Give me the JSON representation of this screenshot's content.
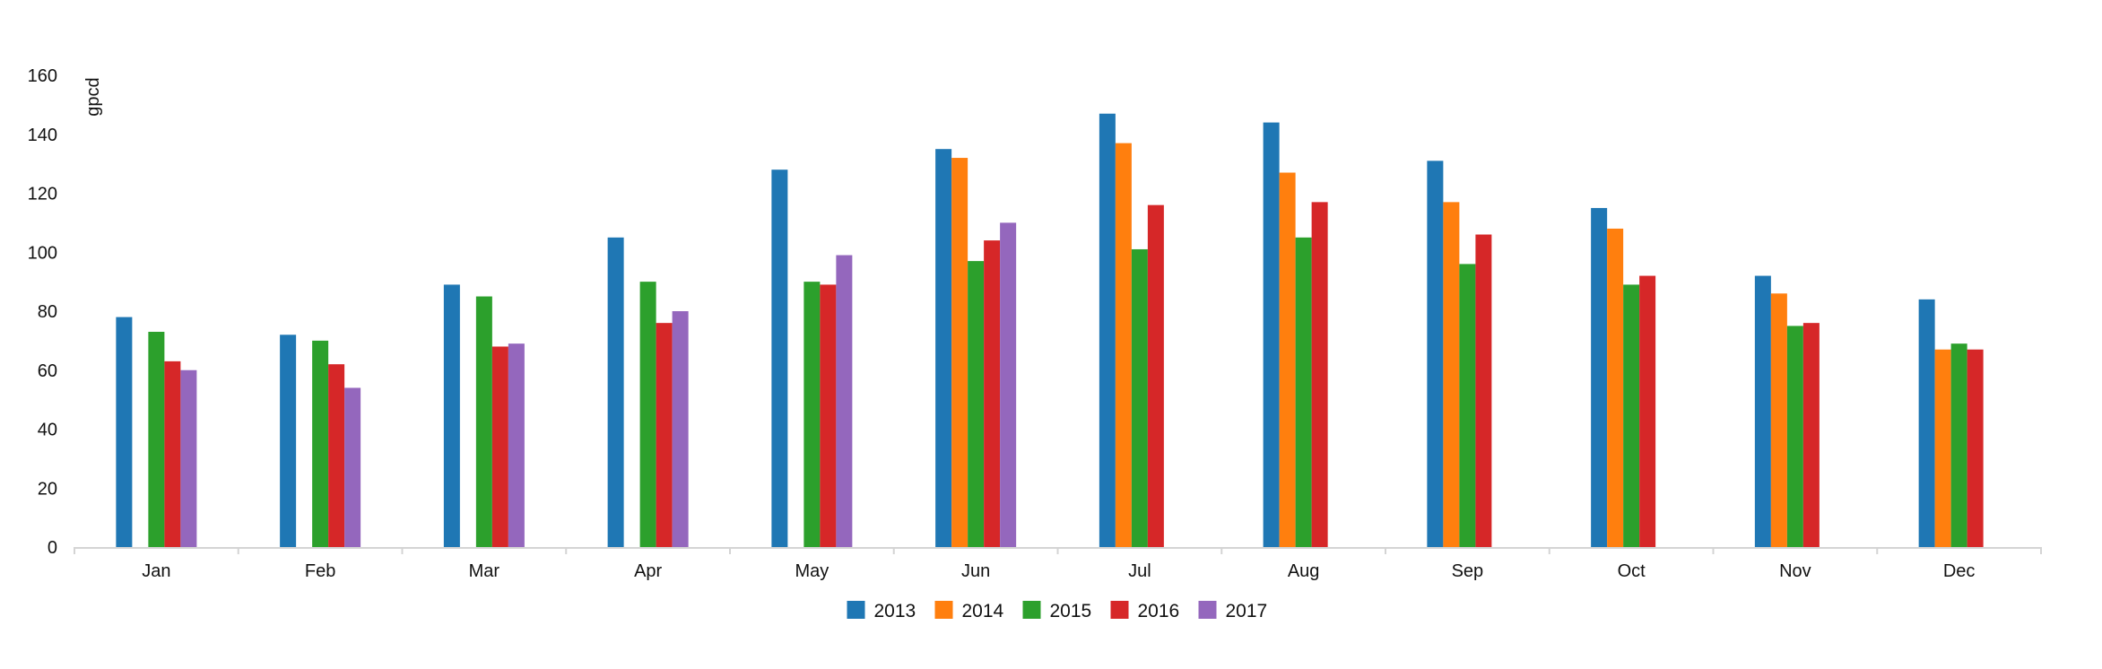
{
  "chart_data": {
    "type": "bar",
    "title": "",
    "xlabel": "",
    "ylabel": "gpcd",
    "ylim": [
      0,
      160
    ],
    "yticks": [
      0,
      20,
      40,
      60,
      80,
      100,
      120,
      140,
      160
    ],
    "grid": false,
    "legend_position": "bottom-center",
    "categories": [
      "Jan",
      "Feb",
      "Mar",
      "Apr",
      "May",
      "Jun",
      "Jul",
      "Aug",
      "Sep",
      "Oct",
      "Nov",
      "Dec"
    ],
    "series": [
      {
        "name": "2013",
        "color": "#1f77b4",
        "values": [
          78,
          72,
          89,
          105,
          128,
          135,
          147,
          144,
          131,
          115,
          92,
          84
        ]
      },
      {
        "name": "2014",
        "color": "#ff7f0e",
        "values": [
          null,
          null,
          null,
          null,
          null,
          132,
          137,
          127,
          117,
          108,
          86,
          67
        ]
      },
      {
        "name": "2015",
        "color": "#2ca02c",
        "values": [
          73,
          70,
          85,
          90,
          90,
          97,
          101,
          105,
          96,
          89,
          75,
          69
        ]
      },
      {
        "name": "2016",
        "color": "#d62728",
        "values": [
          63,
          62,
          68,
          76,
          89,
          104,
          116,
          117,
          106,
          92,
          76,
          67
        ]
      },
      {
        "name": "2017",
        "color": "#9467bd",
        "values": [
          60,
          54,
          69,
          80,
          99,
          110,
          null,
          null,
          null,
          null,
          null,
          null
        ]
      }
    ]
  }
}
